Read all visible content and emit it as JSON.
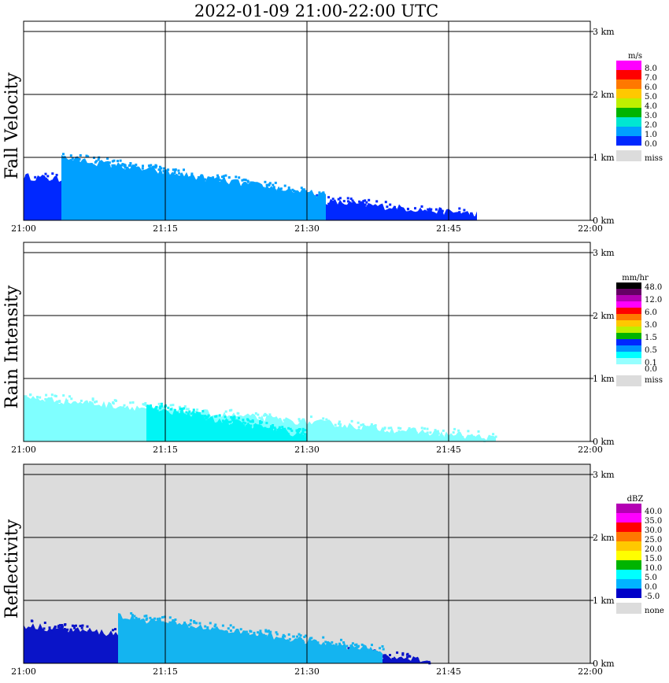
{
  "title": "2022-01-09   21:00-22:00 UTC",
  "chart_data": [
    {
      "type": "heatmap",
      "title": "Fall Velocity",
      "unit": "m/s",
      "x_ticks": [
        "21:00",
        "21:15",
        "21:30",
        "21:45",
        "22:00"
      ],
      "y_ticks": [
        "0 km",
        "1 km",
        "2 km",
        "3 km"
      ],
      "xlim": [
        0,
        60
      ],
      "ylim": [
        0,
        3
      ],
      "grid": true,
      "colorbar": [
        {
          "label": "8.0",
          "color": "#ff00ff"
        },
        {
          "label": "7.0",
          "color": "#ff0000"
        },
        {
          "label": "6.0",
          "color": "#ff7800"
        },
        {
          "label": "5.0",
          "color": "#ffc800"
        },
        {
          "label": "4.0",
          "color": "#bef000"
        },
        {
          "label": "3.0",
          "color": "#00b400"
        },
        {
          "label": "2.0",
          "color": "#00e6d2"
        },
        {
          "label": "1.0",
          "color": "#00a0ff"
        },
        {
          "label": "0.0",
          "color": "#0028ff"
        },
        {
          "label": "miss",
          "color": "#dcdcdc"
        }
      ],
      "echo_regions": [
        {
          "level": "0.0-1.0",
          "color": "#0028ff",
          "t_start": 0,
          "t_end": 48,
          "top_km_start": 0.7,
          "top_km_end": 0.1
        },
        {
          "level": "1.0-2.0",
          "color": "#00a0ff",
          "t_start": 4,
          "t_end": 32,
          "top_km_start": 1.0,
          "top_km_end": 0.4
        }
      ]
    },
    {
      "type": "heatmap",
      "title": "Rain Intensity",
      "unit": "mm/hr",
      "x_ticks": [
        "21:00",
        "21:15",
        "21:30",
        "21:45",
        "22:00"
      ],
      "y_ticks": [
        "0 km",
        "1 km",
        "2 km",
        "3 km"
      ],
      "xlim": [
        0,
        60
      ],
      "ylim": [
        0,
        3
      ],
      "grid": true,
      "colorbar": [
        {
          "label": "48.0",
          "color": "#000000"
        },
        {
          "label": "",
          "color": "#640064"
        },
        {
          "label": "12.0",
          "color": "#b400b4"
        },
        {
          "label": "",
          "color": "#ff00ff"
        },
        {
          "label": "6.0",
          "color": "#ff0000"
        },
        {
          "label": "",
          "color": "#ff7800"
        },
        {
          "label": "3.0",
          "color": "#ffc800"
        },
        {
          "label": "",
          "color": "#bef000"
        },
        {
          "label": "1.5",
          "color": "#00b400"
        },
        {
          "label": "",
          "color": "#0028ff"
        },
        {
          "label": "0.5",
          "color": "#0096ff"
        },
        {
          "label": "",
          "color": "#00ffff"
        },
        {
          "label": "0.1",
          "color": "#96ffff"
        },
        {
          "label": "0.0",
          "color": "#ffffff"
        },
        {
          "label": "miss",
          "color": "#dcdcdc"
        }
      ],
      "echo_regions": [
        {
          "level": "0.0-0.1",
          "color": "#7fffff",
          "t_start": 0,
          "t_end": 50,
          "top_km_start": 0.7,
          "top_km_end": 0.05
        },
        {
          "level": "0.1-0.5",
          "color": "#00f5f5",
          "t_start": 13,
          "t_end": 30,
          "top_km_start": 0.55,
          "top_km_end": 0.1
        }
      ]
    },
    {
      "type": "heatmap",
      "title": "Reflectivity",
      "unit": "dBZ",
      "x_ticks": [
        "21:00",
        "21:15",
        "21:30",
        "21:45",
        "22:00"
      ],
      "y_ticks": [
        "0 km",
        "1 km",
        "2 km",
        "3 km"
      ],
      "xlim": [
        0,
        60
      ],
      "ylim": [
        0,
        3
      ],
      "grid": true,
      "colorbar": [
        {
          "label": "40.0",
          "color": "#b400b4"
        },
        {
          "label": "35.0",
          "color": "#ff00ff"
        },
        {
          "label": "30.0",
          "color": "#ff0000"
        },
        {
          "label": "25.0",
          "color": "#ff7800"
        },
        {
          "label": "20.0",
          "color": "#ffc800"
        },
        {
          "label": "15.0",
          "color": "#ffff00"
        },
        {
          "label": "10.0",
          "color": "#00b400"
        },
        {
          "label": "5.0",
          "color": "#00ffff"
        },
        {
          "label": "0.0",
          "color": "#00b4ff"
        },
        {
          "label": "-5.0",
          "color": "#0000c8"
        },
        {
          "label": "none",
          "color": "#dcdcdc"
        }
      ],
      "echo_regions": [
        {
          "level": "-5.0-0.0",
          "color": "#0a14c8",
          "t_start": 0,
          "t_end": 43,
          "top_km_start": 0.6,
          "top_km_end": 0.05
        },
        {
          "level": "0.0-5.0",
          "color": "#14b4f0",
          "t_start": 10,
          "t_end": 38,
          "top_km_start": 0.75,
          "top_km_end": 0.2
        }
      ]
    }
  ]
}
